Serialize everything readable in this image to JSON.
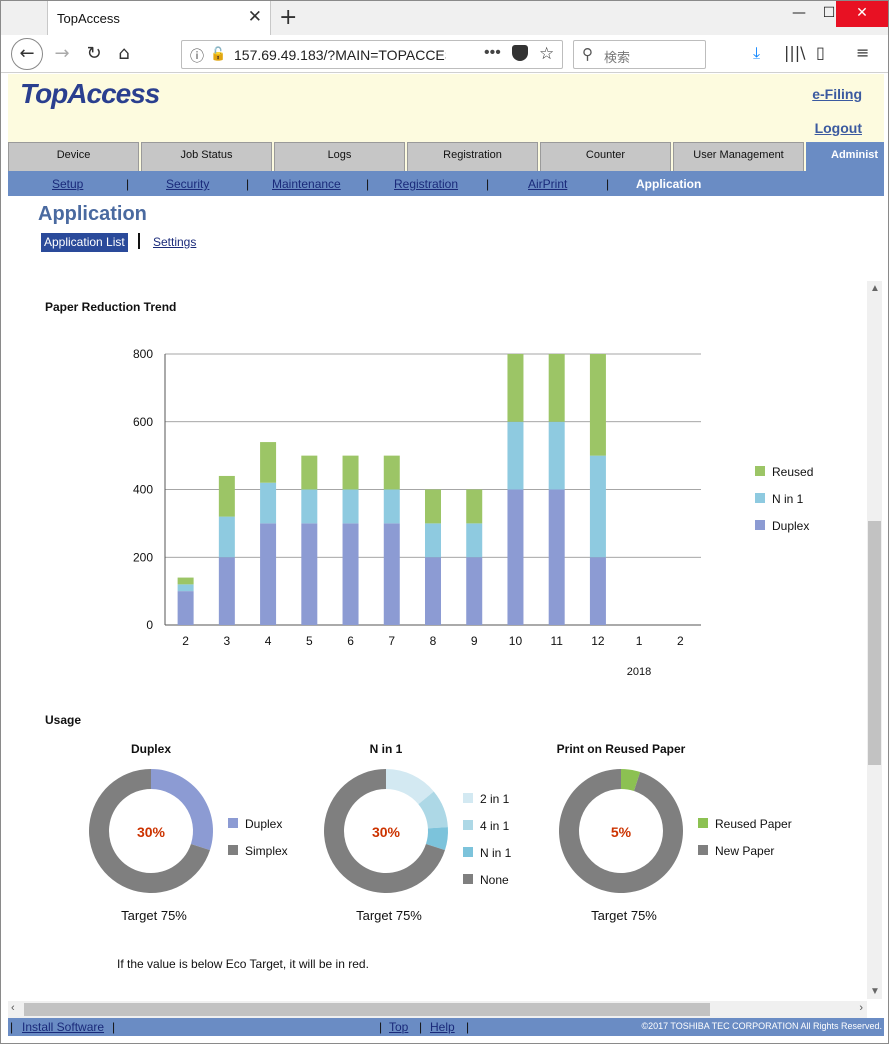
{
  "browser": {
    "tab_title": "TopAccess",
    "tab_close": "✕",
    "new_tab": "+",
    "url": "157.69.49.183/?MAIN=TOPACCESS",
    "search_placeholder": "検索",
    "window_controls": {
      "minimize": "—",
      "maximize": "☐",
      "close": "✕"
    }
  },
  "header": {
    "logo": "TopAccess",
    "efiling": "e-Filing",
    "logout": "Logout"
  },
  "main_tabs": [
    "Device",
    "Job Status",
    "Logs",
    "Registration",
    "Counter",
    "User Management",
    "Administ"
  ],
  "sub_nav": [
    "Setup",
    "Security",
    "Maintenance",
    "Registration",
    "AirPrint",
    "Application"
  ],
  "page": {
    "title": "Application",
    "application_list": "Application List",
    "settings": "Settings"
  },
  "chart_data": [
    {
      "type": "bar",
      "stacked": true,
      "title": "Paper Reduction Trend",
      "categories": [
        "2",
        "3",
        "4",
        "5",
        "6",
        "7",
        "8",
        "9",
        "10",
        "11",
        "12",
        "1",
        "2"
      ],
      "x_sublabel": "2018",
      "ylim": [
        0,
        800
      ],
      "yticks": [
        0,
        200,
        400,
        600,
        800
      ],
      "grid": true,
      "legend_position": "right",
      "series": [
        {
          "name": "Duplex",
          "color": "#8c9bd3",
          "values": [
            100,
            200,
            300,
            300,
            300,
            300,
            200,
            200,
            400,
            400,
            200,
            0,
            0
          ]
        },
        {
          "name": "N in 1",
          "color": "#8ecae0",
          "values": [
            20,
            120,
            120,
            100,
            100,
            100,
            100,
            100,
            200,
            200,
            300,
            0,
            0
          ]
        },
        {
          "name": "Reused",
          "color": "#9cc566",
          "values": [
            20,
            120,
            120,
            100,
            100,
            100,
            100,
            100,
            200,
            200,
            300,
            0,
            0
          ]
        }
      ],
      "legend_order": [
        "Reused",
        "N in 1",
        "Duplex"
      ]
    },
    {
      "type": "pie",
      "donut": true,
      "title": "Duplex",
      "center_label": "30%",
      "caption": "Target 75%",
      "slices": [
        {
          "label": "Duplex",
          "value": 30,
          "color": "#8c9bd3"
        },
        {
          "label": "Simplex",
          "value": 70,
          "color": "#7f7f7f"
        }
      ]
    },
    {
      "type": "pie",
      "donut": true,
      "title": "N in 1",
      "center_label": "30%",
      "caption": "Target 75%",
      "slices": [
        {
          "label": "2 in 1",
          "value": 14,
          "color": "#d3e9f2"
        },
        {
          "label": "4 in 1",
          "value": 10,
          "color": "#add8e6"
        },
        {
          "label": "N in 1",
          "value": 6,
          "color": "#7cc3db"
        },
        {
          "label": "None",
          "value": 70,
          "color": "#7f7f7f"
        }
      ]
    },
    {
      "type": "pie",
      "donut": true,
      "title": "Print on Reused Paper",
      "center_label": "5%",
      "caption": "Target 75%",
      "slices": [
        {
          "label": "Reused Paper",
          "value": 5,
          "color": "#8cc152"
        },
        {
          "label": "New Paper",
          "value": 95,
          "color": "#7f7f7f"
        }
      ]
    }
  ],
  "usage_heading": "Usage",
  "eco_note": "If the value is below Eco Target, it will be in red.",
  "highlight_color": "#cc3300",
  "footer": {
    "install": "Install Software",
    "top": "Top",
    "help": "Help",
    "copyright": "©2017 TOSHIBA TEC CORPORATION All Rights Reserved."
  }
}
